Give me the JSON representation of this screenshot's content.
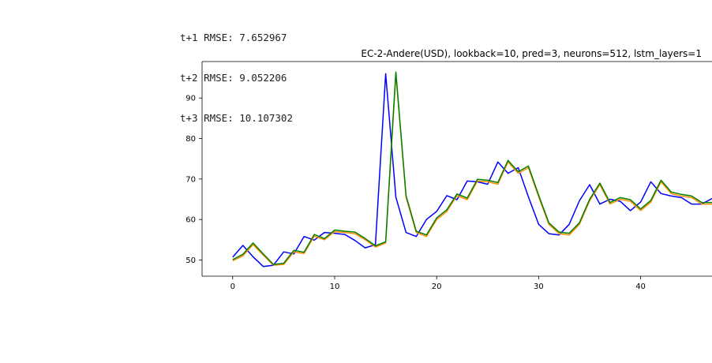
{
  "log_lines": [
    "t+1 RMSE: 7.652967",
    "t+2 RMSE: 9.052206",
    "t+3 RMSE: 10.107302"
  ],
  "chart_data": {
    "type": "line",
    "title": "EC-2-Andere(USD), lookback=10, pred=3, neurons=512, lstm_layers=1",
    "xlabel": "",
    "ylabel": "",
    "xlim": [
      -3,
      47
    ],
    "ylim": [
      46,
      99
    ],
    "xticks": [
      0,
      10,
      20,
      30,
      40
    ],
    "yticks": [
      50,
      60,
      70,
      80,
      90
    ],
    "grid": false,
    "series": [
      {
        "color": "#0000ff",
        "x": [
          0,
          1,
          2,
          3,
          4,
          5,
          6,
          7,
          8,
          9,
          10,
          11,
          12,
          13,
          14,
          15,
          16,
          17,
          18,
          19,
          20,
          21,
          22,
          23,
          24,
          25,
          26,
          27,
          28,
          29,
          30,
          31,
          32,
          33,
          34,
          35,
          36,
          37,
          38,
          39,
          40,
          41,
          42,
          43,
          44,
          45,
          46,
          47
        ],
        "values": [
          50.7,
          53.6,
          50.8,
          48.4,
          48.7,
          52.0,
          51.5,
          55.8,
          54.9,
          56.8,
          56.6,
          56.3,
          54.8,
          53.0,
          53.8,
          96.0,
          65.5,
          56.8,
          55.8,
          60.0,
          62.0,
          65.9,
          64.9,
          69.5,
          69.3,
          68.7,
          74.2,
          71.4,
          72.8,
          65.6,
          58.8,
          56.5,
          56.2,
          58.8,
          64.6,
          68.6,
          63.8,
          65.0,
          64.5,
          62.2,
          64.3,
          69.3,
          66.4,
          65.8,
          65.4,
          63.8,
          63.8,
          65.2
        ]
      },
      {
        "color": "#ff8c00",
        "x": [
          0,
          1,
          2,
          3,
          4,
          5,
          6,
          7,
          8,
          9,
          10,
          11,
          12,
          13,
          14,
          15,
          16,
          17,
          18,
          19,
          20,
          21,
          22,
          23,
          24,
          25,
          26,
          27,
          28,
          29,
          30,
          31,
          32,
          33,
          34,
          35,
          36,
          37,
          38,
          39,
          40,
          41,
          42,
          43,
          44,
          45,
          46,
          47
        ],
        "values": [
          49.8,
          51.0,
          53.8,
          51.2,
          48.7,
          48.9,
          52.0,
          51.6,
          55.9,
          55.0,
          57.0,
          56.8,
          56.5,
          55.0,
          53.2,
          54.2,
          96.0,
          65.5,
          56.8,
          55.8,
          60.0,
          62.0,
          65.9,
          64.9,
          69.5,
          69.3,
          68.7,
          74.2,
          71.4,
          72.8,
          65.6,
          58.8,
          56.5,
          56.2,
          58.8,
          64.6,
          68.6,
          63.8,
          65.0,
          64.5,
          62.2,
          64.3,
          69.3,
          66.4,
          65.8,
          65.4,
          63.8,
          63.8
        ]
      },
      {
        "color": "#008000",
        "x": [
          0,
          1,
          2,
          3,
          4,
          5,
          6,
          7,
          8,
          9,
          10,
          11,
          12,
          13,
          14,
          15,
          16,
          17,
          18,
          19,
          20,
          21,
          22,
          23,
          24,
          25,
          26,
          27,
          28,
          29,
          30,
          31,
          32,
          33,
          34,
          35,
          36,
          37,
          38,
          39,
          40,
          41,
          42,
          43,
          44,
          45,
          46,
          47
        ],
        "values": [
          50.1,
          51.4,
          54.2,
          51.5,
          48.9,
          49.2,
          52.4,
          51.9,
          56.3,
          55.3,
          57.4,
          57.1,
          56.9,
          55.3,
          53.5,
          54.5,
          96.4,
          65.9,
          57.1,
          56.2,
          60.4,
          62.4,
          66.3,
          65.3,
          69.9,
          69.7,
          69.1,
          74.6,
          71.8,
          73.2,
          66.0,
          59.2,
          56.9,
          56.6,
          59.2,
          65.0,
          69.0,
          64.2,
          65.4,
          64.9,
          62.6,
          64.7,
          69.7,
          66.8,
          66.2,
          65.8,
          64.2,
          64.2
        ]
      }
    ]
  }
}
